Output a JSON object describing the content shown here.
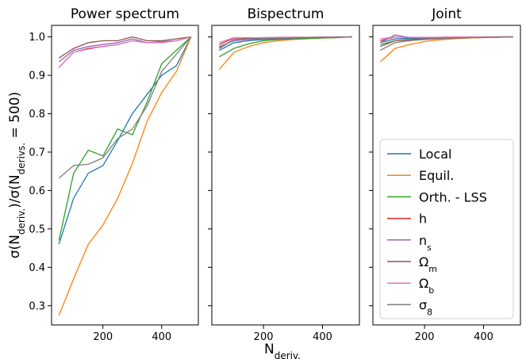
{
  "chart_data": {
    "type": "line",
    "ylabel": "σ(N_deriv.)/σ(N_derivs. = 500)",
    "xlabel": "N_deriv.",
    "xlim": [
      25,
      525
    ],
    "ylim": [
      0.25,
      1.03
    ],
    "xticks": [
      200,
      400
    ],
    "yticks": [
      0.3,
      0.4,
      0.5,
      0.6,
      0.7,
      0.8,
      0.9,
      1.0
    ],
    "ytick_labels": [
      "0.3",
      "0.4",
      "0.5",
      "0.6",
      "0.7",
      "0.8",
      "0.9",
      "1.0"
    ],
    "x": [
      50,
      100,
      150,
      200,
      250,
      300,
      350,
      400,
      450,
      500
    ],
    "legend_position": "lower right of third panel",
    "series_styles": [
      {
        "name": "Local",
        "color": "#1f77b4"
      },
      {
        "name": "Equil.",
        "color": "#ff7f0e"
      },
      {
        "name": "Orth. - LSS",
        "color": "#2ca02c"
      },
      {
        "name": "h",
        "color": "#d62728"
      },
      {
        "name": "n",
        "sub": "s",
        "color": "#9467bd"
      },
      {
        "name": "Ω",
        "sub": "m",
        "color": "#8c564b"
      },
      {
        "name": "Ω",
        "sub": "b",
        "color": "#e377c2"
      },
      {
        "name": "σ",
        "sub": "8",
        "color": "#7f7f7f"
      }
    ],
    "panels": [
      {
        "title": "Power spectrum",
        "series": [
          {
            "name": "Local",
            "values": [
              0.46,
              0.58,
              0.645,
              0.665,
              0.73,
              0.8,
              0.85,
              0.9,
              0.925,
              1.0
            ]
          },
          {
            "name": "Equil.",
            "values": [
              0.275,
              0.37,
              0.46,
              0.51,
              0.58,
              0.67,
              0.78,
              0.855,
              0.91,
              1.0
            ]
          },
          {
            "name": "Orth. - LSS",
            "values": [
              0.47,
              0.645,
              0.705,
              0.69,
              0.76,
              0.745,
              0.83,
              0.93,
              0.965,
              1.0
            ]
          },
          {
            "name": "h",
            "values": [
              0.92,
              0.96,
              0.97,
              0.975,
              0.98,
              0.99,
              0.985,
              0.985,
              0.99,
              1.0
            ]
          },
          {
            "name": "n_s",
            "values": [
              0.935,
              0.965,
              0.975,
              0.98,
              0.985,
              0.995,
              0.985,
              0.988,
              0.99,
              1.0
            ]
          },
          {
            "name": "Ω_m",
            "values": [
              0.945,
              0.97,
              0.985,
              0.99,
              0.99,
              1.0,
              0.99,
              0.99,
              0.995,
              1.0
            ]
          },
          {
            "name": "Ω_b",
            "values": [
              0.92,
              0.96,
              0.968,
              0.975,
              0.98,
              0.99,
              0.985,
              0.985,
              0.99,
              1.0
            ]
          },
          {
            "name": "σ_8",
            "values": [
              0.632,
              0.665,
              0.668,
              0.685,
              0.735,
              0.76,
              0.82,
              0.91,
              0.955,
              1.0
            ]
          }
        ]
      },
      {
        "title": "Bispectrum",
        "series": [
          {
            "name": "Local",
            "values": [
              0.965,
              0.985,
              0.99,
              0.993,
              0.995,
              0.996,
              0.997,
              0.998,
              0.999,
              1.0
            ]
          },
          {
            "name": "Equil.",
            "values": [
              0.915,
              0.96,
              0.975,
              0.985,
              0.99,
              0.993,
              0.995,
              0.997,
              0.998,
              1.0
            ]
          },
          {
            "name": "Orth. - LSS",
            "values": [
              0.948,
              0.97,
              0.982,
              0.99,
              0.993,
              0.995,
              0.996,
              0.997,
              0.998,
              1.0
            ]
          },
          {
            "name": "h",
            "values": [
              0.98,
              0.997,
              0.997,
              0.998,
              0.998,
              0.999,
              0.999,
              0.999,
              1.0,
              1.0
            ]
          },
          {
            "name": "n_s",
            "values": [
              0.975,
              0.99,
              0.993,
              0.995,
              0.996,
              0.997,
              0.998,
              0.999,
              0.999,
              1.0
            ]
          },
          {
            "name": "Ω_m",
            "values": [
              0.97,
              0.993,
              0.995,
              0.996,
              0.997,
              0.998,
              0.998,
              0.999,
              0.999,
              1.0
            ]
          },
          {
            "name": "Ω_b",
            "values": [
              0.985,
              0.998,
              0.998,
              0.998,
              0.999,
              0.999,
              0.999,
              1.0,
              1.0,
              1.0
            ]
          },
          {
            "name": "σ_8",
            "values": [
              0.972,
              0.993,
              0.995,
              0.996,
              0.997,
              0.998,
              0.998,
              0.999,
              0.999,
              1.0
            ]
          }
        ]
      },
      {
        "title": "Joint",
        "series": [
          {
            "name": "Local",
            "values": [
              0.985,
              0.995,
              0.996,
              0.997,
              0.998,
              0.998,
              0.999,
              0.999,
              1.0,
              1.0
            ]
          },
          {
            "name": "Equil.",
            "values": [
              0.935,
              0.97,
              0.98,
              0.988,
              0.992,
              0.995,
              0.997,
              0.998,
              0.999,
              1.0
            ]
          },
          {
            "name": "Orth. - LSS",
            "values": [
              0.98,
              0.99,
              0.993,
              0.995,
              0.996,
              0.997,
              0.998,
              0.999,
              0.999,
              1.0
            ]
          },
          {
            "name": "h",
            "values": [
              0.99,
              1.0,
              0.998,
              0.998,
              0.999,
              0.999,
              0.999,
              1.0,
              1.0,
              1.0
            ]
          },
          {
            "name": "n_s",
            "values": [
              0.985,
              1.005,
              0.998,
              0.997,
              0.998,
              0.999,
              0.999,
              0.999,
              1.0,
              1.0
            ]
          },
          {
            "name": "Ω_m",
            "values": [
              0.975,
              0.99,
              0.992,
              0.994,
              0.996,
              0.997,
              0.998,
              0.999,
              0.999,
              1.0
            ]
          },
          {
            "name": "Ω_b",
            "values": [
              0.995,
              1.0,
              0.999,
              0.999,
              0.999,
              1.0,
              1.0,
              1.0,
              1.0,
              1.0
            ]
          },
          {
            "name": "σ_8",
            "values": [
              0.965,
              0.985,
              0.99,
              0.993,
              0.995,
              0.997,
              0.998,
              0.999,
              0.999,
              1.0
            ]
          }
        ]
      }
    ]
  }
}
